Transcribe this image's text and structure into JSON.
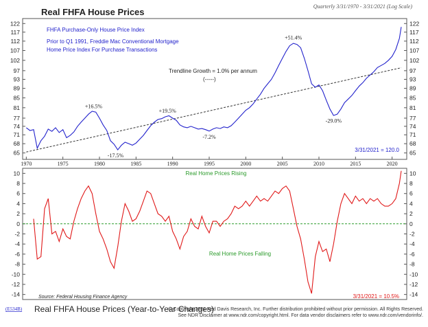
{
  "header": {
    "top_title": "Real FHFA House Prices",
    "period_note": "Quarterly 3/31/1970 - 3/31/2021 (Log Scale)",
    "bottom_title": "Real FHFA House Prices (Year-to-Year Changes)",
    "chart_code": "(E534B)",
    "copyright_line1": "© Copyright 2021 Ned Davis Research, Inc. Further distribution prohibited without prior permission. All Rights Reserved.",
    "copyright_line2": "See NDR Disclaimer at www.ndr.com/copyright.html. For data vendor disclaimers refer to www.ndr.com/vendorinfo/."
  },
  "colors": {
    "top_line": "#2222cc",
    "bottom_line": "#e01818",
    "legend_green": "#2a9a2a",
    "trend": "#333333"
  },
  "chart_data": [
    {
      "type": "line",
      "title": "Real FHFA House Prices",
      "scale": "log",
      "ylim": [
        63,
        125
      ],
      "y_ticks": [
        65,
        68,
        71,
        74,
        77,
        81,
        85,
        89,
        93,
        97,
        102,
        107,
        112,
        117,
        122
      ],
      "xlim": [
        1969.5,
        2022.0
      ],
      "x_ticks": [
        1970,
        1975,
        1980,
        1985,
        1990,
        1995,
        2000,
        2005,
        2010,
        2015,
        2020
      ],
      "legend_lines": [
        "FHFA Purchase-Only House Price Index",
        "Prior to Q1 1991, Freddie Mac Conventional Mortgage",
        "Home Price Index For Purchase Transactions"
      ],
      "trendline": {
        "label": "Trendline Growth = 1.0% per annum",
        "key": "(-----)",
        "start": {
          "x": 1970.0,
          "y": 65.3
        },
        "end": {
          "x": 2021.25,
          "y": 98.4
        }
      },
      "annotations": [
        {
          "text": "+16.5%",
          "x": 1979.2,
          "y": 79.5,
          "pos": "above"
        },
        {
          "text": "-17.5%",
          "x": 1982.2,
          "y": 66.0,
          "pos": "below"
        },
        {
          "text": "+19.5%",
          "x": 1989.3,
          "y": 77.8,
          "pos": "above"
        },
        {
          "text": "-7.2%",
          "x": 1995.0,
          "y": 72.3,
          "pos": "below"
        },
        {
          "text": "+51.4%",
          "x": 2006.5,
          "y": 111.0,
          "pos": "above"
        },
        {
          "text": "-29.0%",
          "x": 2012.0,
          "y": 78.2,
          "pos": "below"
        }
      ],
      "last_value_label": "3/31/2021 = 120.0",
      "series": [
        {
          "values": [
            [
              1970.0,
              73.5
            ],
            [
              1970.5,
              72.5
            ],
            [
              1971.0,
              72.8
            ],
            [
              1971.5,
              66.5
            ],
            [
              1972.0,
              69.0
            ],
            [
              1972.5,
              70.5
            ],
            [
              1973.0,
              73.0
            ],
            [
              1973.5,
              72.2
            ],
            [
              1974.0,
              73.5
            ],
            [
              1974.5,
              71.8
            ],
            [
              1975.0,
              72.8
            ],
            [
              1975.5,
              70.0
            ],
            [
              1976.0,
              70.8
            ],
            [
              1976.5,
              72.0
            ],
            [
              1977.0,
              74.0
            ],
            [
              1977.5,
              75.5
            ],
            [
              1978.0,
              77.0
            ],
            [
              1978.5,
              78.5
            ],
            [
              1979.0,
              79.6
            ],
            [
              1979.5,
              79.3
            ],
            [
              1980.0,
              77.0
            ],
            [
              1980.5,
              74.5
            ],
            [
              1981.0,
              72.5
            ],
            [
              1981.5,
              69.0
            ],
            [
              1982.0,
              67.8
            ],
            [
              1982.5,
              66.0
            ],
            [
              1983.0,
              67.5
            ],
            [
              1983.5,
              68.5
            ],
            [
              1984.0,
              68.0
            ],
            [
              1984.5,
              67.5
            ],
            [
              1985.0,
              68.2
            ],
            [
              1985.5,
              69.5
            ],
            [
              1986.0,
              70.8
            ],
            [
              1986.5,
              72.5
            ],
            [
              1987.0,
              74.2
            ],
            [
              1987.5,
              75.5
            ],
            [
              1988.0,
              76.5
            ],
            [
              1988.5,
              76.8
            ],
            [
              1989.0,
              77.5
            ],
            [
              1989.5,
              77.9
            ],
            [
              1990.0,
              77.0
            ],
            [
              1990.5,
              76.2
            ],
            [
              1991.0,
              74.5
            ],
            [
              1991.5,
              73.8
            ],
            [
              1992.0,
              73.5
            ],
            [
              1992.5,
              74.0
            ],
            [
              1993.0,
              73.5
            ],
            [
              1993.5,
              73.0
            ],
            [
              1994.0,
              73.2
            ],
            [
              1994.5,
              72.8
            ],
            [
              1995.0,
              72.3
            ],
            [
              1995.5,
              73.0
            ],
            [
              1996.0,
              73.5
            ],
            [
              1996.5,
              73.2
            ],
            [
              1997.0,
              73.8
            ],
            [
              1997.5,
              73.5
            ],
            [
              1998.0,
              74.2
            ],
            [
              1998.5,
              75.5
            ],
            [
              1999.0,
              77.0
            ],
            [
              1999.5,
              78.5
            ],
            [
              2000.0,
              80.0
            ],
            [
              2000.5,
              81.0
            ],
            [
              2001.0,
              82.5
            ],
            [
              2001.5,
              84.5
            ],
            [
              2002.0,
              86.5
            ],
            [
              2002.5,
              89.0
            ],
            [
              2003.0,
              91.0
            ],
            [
              2003.5,
              93.0
            ],
            [
              2004.0,
              96.0
            ],
            [
              2004.5,
              99.5
            ],
            [
              2005.0,
              103.0
            ],
            [
              2005.5,
              106.5
            ],
            [
              2006.0,
              109.5
            ],
            [
              2006.5,
              110.8
            ],
            [
              2007.0,
              110.2
            ],
            [
              2007.5,
              108.5
            ],
            [
              2008.0,
              103.0
            ],
            [
              2008.5,
              97.0
            ],
            [
              2009.0,
              91.0
            ],
            [
              2009.5,
              89.5
            ],
            [
              2010.0,
              90.5
            ],
            [
              2010.5,
              88.0
            ],
            [
              2011.0,
              84.0
            ],
            [
              2011.5,
              80.5
            ],
            [
              2012.0,
              78.0
            ],
            [
              2012.5,
              78.5
            ],
            [
              2013.0,
              80.5
            ],
            [
              2013.5,
              83.0
            ],
            [
              2014.0,
              84.5
            ],
            [
              2014.5,
              86.0
            ],
            [
              2015.0,
              88.0
            ],
            [
              2015.5,
              90.0
            ],
            [
              2016.0,
              91.5
            ],
            [
              2016.5,
              93.5
            ],
            [
              2017.0,
              95.0
            ],
            [
              2017.5,
              96.5
            ],
            [
              2018.0,
              98.5
            ],
            [
              2018.5,
              99.5
            ],
            [
              2019.0,
              100.5
            ],
            [
              2019.5,
              102.0
            ],
            [
              2020.0,
              104.0
            ],
            [
              2020.5,
              107.5
            ],
            [
              2021.0,
              113.5
            ],
            [
              2021.25,
              120.0
            ]
          ]
        }
      ]
    },
    {
      "type": "line",
      "title": "Real FHFA House Prices (Year-to-Year Changes)",
      "ylim": [
        -15,
        11
      ],
      "y_ticks": [
        -14,
        -12,
        -10,
        -8,
        -6,
        -4,
        -2,
        0,
        2,
        4,
        6,
        8,
        10
      ],
      "xlim": [
        1969.5,
        2022.0
      ],
      "zero_line": true,
      "labels": {
        "rising": "Real Home Prices Rising",
        "falling": "Real Home Prices Falling"
      },
      "source": "Source: Federal Housing Finance Agency",
      "last_value_label": "3/31/2021 = 10.5%",
      "series": [
        {
          "values": [
            [
              1971.0,
              1.0
            ],
            [
              1971.5,
              -7.0
            ],
            [
              1972.0,
              -6.5
            ],
            [
              1972.5,
              3.0
            ],
            [
              1973.0,
              5.0
            ],
            [
              1973.5,
              -2.0
            ],
            [
              1974.0,
              -1.5
            ],
            [
              1974.5,
              -3.5
            ],
            [
              1975.0,
              -1.0
            ],
            [
              1975.5,
              -2.5
            ],
            [
              1976.0,
              -3.0
            ],
            [
              1976.5,
              0.5
            ],
            [
              1977.0,
              3.0
            ],
            [
              1977.5,
              5.0
            ],
            [
              1978.0,
              6.5
            ],
            [
              1978.5,
              7.5
            ],
            [
              1979.0,
              6.0
            ],
            [
              1979.5,
              2.0
            ],
            [
              1980.0,
              -1.5
            ],
            [
              1980.5,
              -3.0
            ],
            [
              1981.0,
              -5.0
            ],
            [
              1981.5,
              -7.5
            ],
            [
              1982.0,
              -8.8
            ],
            [
              1982.5,
              -4.5
            ],
            [
              1983.0,
              0.5
            ],
            [
              1983.5,
              4.0
            ],
            [
              1984.0,
              2.5
            ],
            [
              1984.5,
              0.5
            ],
            [
              1985.0,
              1.0
            ],
            [
              1985.5,
              2.5
            ],
            [
              1986.0,
              4.5
            ],
            [
              1986.5,
              6.5
            ],
            [
              1987.0,
              6.0
            ],
            [
              1987.5,
              4.0
            ],
            [
              1988.0,
              2.0
            ],
            [
              1988.5,
              1.5
            ],
            [
              1989.0,
              0.5
            ],
            [
              1989.5,
              1.5
            ],
            [
              1990.0,
              -1.5
            ],
            [
              1990.5,
              -3.0
            ],
            [
              1991.0,
              -5.0
            ],
            [
              1991.5,
              -2.5
            ],
            [
              1992.0,
              -1.5
            ],
            [
              1992.5,
              1.0
            ],
            [
              1993.0,
              -0.5
            ],
            [
              1993.5,
              -1.0
            ],
            [
              1994.0,
              1.5
            ],
            [
              1994.5,
              -0.5
            ],
            [
              1995.0,
              -1.8
            ],
            [
              1995.5,
              0.5
            ],
            [
              1996.0,
              0.5
            ],
            [
              1996.5,
              -0.5
            ],
            [
              1997.0,
              0.5
            ],
            [
              1997.5,
              1.0
            ],
            [
              1998.0,
              2.0
            ],
            [
              1998.5,
              3.5
            ],
            [
              1999.0,
              3.0
            ],
            [
              1999.5,
              3.5
            ],
            [
              2000.0,
              4.5
            ],
            [
              2000.5,
              3.5
            ],
            [
              2001.0,
              4.5
            ],
            [
              2001.5,
              5.5
            ],
            [
              2002.0,
              4.5
            ],
            [
              2002.5,
              5.0
            ],
            [
              2003.0,
              4.5
            ],
            [
              2003.5,
              5.5
            ],
            [
              2004.0,
              6.5
            ],
            [
              2004.5,
              6.0
            ],
            [
              2005.0,
              7.0
            ],
            [
              2005.5,
              7.5
            ],
            [
              2006.0,
              6.5
            ],
            [
              2006.5,
              3.0
            ],
            [
              2007.0,
              -0.5
            ],
            [
              2007.5,
              -3.0
            ],
            [
              2008.0,
              -7.0
            ],
            [
              2008.5,
              -11.5
            ],
            [
              2009.0,
              -13.8
            ],
            [
              2009.5,
              -6.5
            ],
            [
              2010.0,
              -3.5
            ],
            [
              2010.5,
              -5.5
            ],
            [
              2011.0,
              -5.0
            ],
            [
              2011.5,
              -7.5
            ],
            [
              2012.0,
              -4.0
            ],
            [
              2012.5,
              0.5
            ],
            [
              2013.0,
              4.0
            ],
            [
              2013.5,
              6.0
            ],
            [
              2014.0,
              5.0
            ],
            [
              2014.5,
              4.0
            ],
            [
              2015.0,
              5.5
            ],
            [
              2015.5,
              4.5
            ],
            [
              2016.0,
              5.0
            ],
            [
              2016.5,
              4.0
            ],
            [
              2017.0,
              5.0
            ],
            [
              2017.5,
              4.5
            ],
            [
              2018.0,
              5.0
            ],
            [
              2018.5,
              4.0
            ],
            [
              2019.0,
              3.5
            ],
            [
              2019.5,
              3.5
            ],
            [
              2020.0,
              4.0
            ],
            [
              2020.5,
              5.0
            ],
            [
              2021.0,
              8.0
            ],
            [
              2021.25,
              10.5
            ]
          ]
        }
      ]
    }
  ]
}
